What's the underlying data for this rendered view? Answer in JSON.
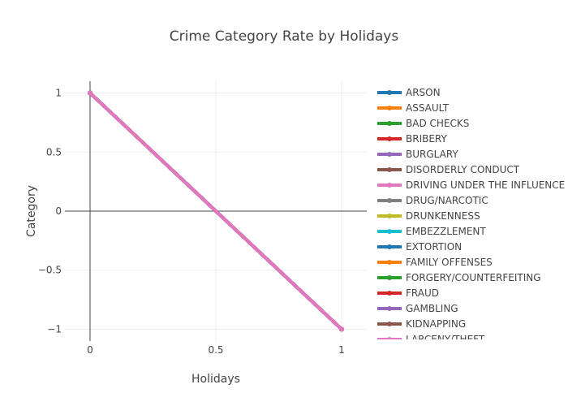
{
  "chart_data": {
    "type": "line",
    "title": "Crime Category Rate by Holidays",
    "xlabel": "Holidays",
    "ylabel": "Category",
    "xlim": [
      -0.1,
      1.1
    ],
    "ylim": [
      -1.1,
      1.1
    ],
    "x_ticks": [
      0,
      0.5,
      1
    ],
    "x_tick_labels": [
      "0",
      "0.5",
      "1"
    ],
    "y_ticks": [
      1,
      0.5,
      0,
      -0.5,
      -1
    ],
    "y_tick_labels": [
      "1",
      "0.5",
      "0",
      "−0.5",
      "−1"
    ],
    "grid": true,
    "legend_position": "right",
    "series": [
      {
        "name": "ARSON",
        "color": "#1f77b4",
        "x": [
          0,
          1
        ],
        "y": [
          1,
          -1
        ]
      },
      {
        "name": "ASSAULT",
        "color": "#ff7f0e",
        "x": [
          0,
          1
        ],
        "y": [
          1,
          -1
        ]
      },
      {
        "name": "BAD CHECKS",
        "color": "#2ca02c",
        "x": [
          0,
          1
        ],
        "y": [
          1,
          -1
        ]
      },
      {
        "name": "BRIBERY",
        "color": "#d62728",
        "x": [
          0,
          1
        ],
        "y": [
          1,
          -1
        ]
      },
      {
        "name": "BURGLARY",
        "color": "#9467bd",
        "x": [
          0,
          1
        ],
        "y": [
          1,
          -1
        ]
      },
      {
        "name": "DISORDERLY CONDUCT",
        "color": "#8c564b",
        "x": [
          0,
          1
        ],
        "y": [
          1,
          -1
        ]
      },
      {
        "name": "DRIVING UNDER THE INFLUENCE",
        "color": "#e377c2",
        "x": [
          0,
          1
        ],
        "y": [
          1,
          -1
        ]
      },
      {
        "name": "DRUG/NARCOTIC",
        "color": "#7f7f7f",
        "x": [
          0,
          1
        ],
        "y": [
          1,
          -1
        ]
      },
      {
        "name": "DRUNKENNESS",
        "color": "#bcbd22",
        "x": [
          0,
          1
        ],
        "y": [
          1,
          -1
        ]
      },
      {
        "name": "EMBEZZLEMENT",
        "color": "#17becf",
        "x": [
          0,
          1
        ],
        "y": [
          1,
          -1
        ]
      },
      {
        "name": "EXTORTION",
        "color": "#1f77b4",
        "x": [
          0,
          1
        ],
        "y": [
          1,
          -1
        ]
      },
      {
        "name": "FAMILY OFFENSES",
        "color": "#ff7f0e",
        "x": [
          0,
          1
        ],
        "y": [
          1,
          -1
        ]
      },
      {
        "name": "FORGERY/COUNTERFEITING",
        "color": "#2ca02c",
        "x": [
          0,
          1
        ],
        "y": [
          1,
          -1
        ]
      },
      {
        "name": "FRAUD",
        "color": "#d62728",
        "x": [
          0,
          1
        ],
        "y": [
          1,
          -1
        ]
      },
      {
        "name": "GAMBLING",
        "color": "#9467bd",
        "x": [
          0,
          1
        ],
        "y": [
          1,
          -1
        ]
      },
      {
        "name": "KIDNAPPING",
        "color": "#8c564b",
        "x": [
          0,
          1
        ],
        "y": [
          1,
          -1
        ]
      },
      {
        "name": "LARCENY/THEFT",
        "color": "#e377c2",
        "x": [
          0,
          1
        ],
        "y": [
          1,
          -1
        ]
      }
    ]
  }
}
